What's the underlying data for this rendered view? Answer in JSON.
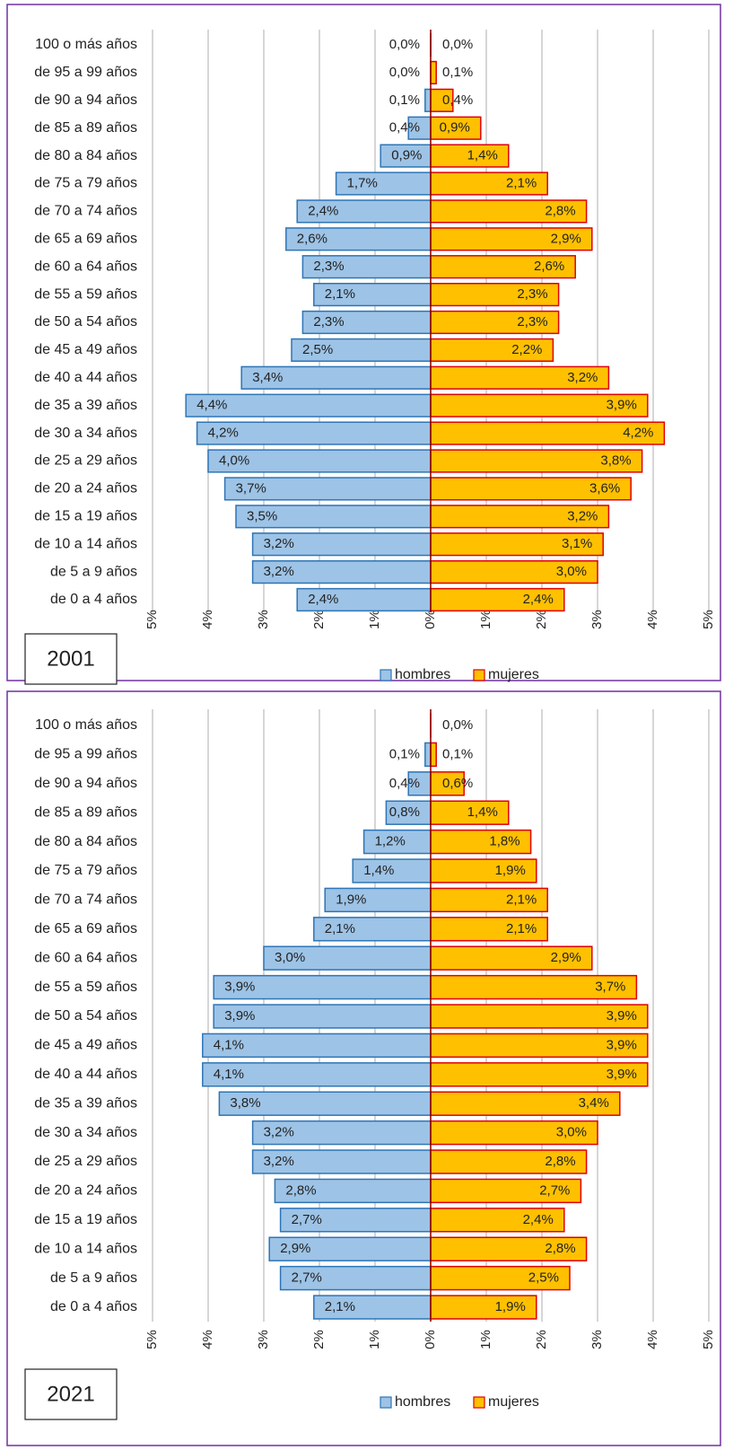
{
  "chart_data": [
    {
      "type": "bar",
      "orientation": "horizontal",
      "layout": "pyramid",
      "title": "2001",
      "categories": [
        "100 o más años",
        "de 95 a 99 años",
        "de 90 a 94 años",
        "de 85 a 89 años",
        "de 80 a 84 años",
        "de 75 a 79 años",
        "de 70 a 74 años",
        "de 65 a 69 años",
        "de 60 a 64 años",
        "de 55 a 59 años",
        "de 50 a 54 años",
        "de 45 a 49 años",
        "de 40 a 44 años",
        "de 35 a 39 años",
        "de 30 a 34 años",
        "de 25 a 29 años",
        "de 20 a 24 años",
        "de 15 a 19 años",
        "de 10 a 14 años",
        "de 5 a 9 años",
        "de 0 a 4 años"
      ],
      "series": [
        {
          "name": "hombres",
          "color": "#9dc3e6",
          "edge": "#2e75b6",
          "values": [
            0.0,
            0.0,
            0.1,
            0.4,
            0.9,
            1.7,
            2.4,
            2.6,
            2.3,
            2.1,
            2.3,
            2.5,
            3.4,
            4.4,
            4.2,
            4.0,
            3.7,
            3.5,
            3.2,
            3.2,
            2.4
          ],
          "value_labels": [
            "0,0%",
            "0,0%",
            "0,1%",
            "0,4%",
            "0,9%",
            "1,7%",
            "2,4%",
            "2,6%",
            "2,3%",
            "2,1%",
            "2,3%",
            "2,5%",
            "3,4%",
            "4,4%",
            "4,2%",
            "4,0%",
            "3,7%",
            "3,5%",
            "3,2%",
            "3,2%",
            "2,4%"
          ]
        },
        {
          "name": "mujeres",
          "color": "#ffc000",
          "edge": "#e00000",
          "values": [
            0.0,
            0.1,
            0.4,
            0.9,
            1.4,
            2.1,
            2.8,
            2.9,
            2.6,
            2.3,
            2.3,
            2.2,
            3.2,
            3.9,
            4.2,
            3.8,
            3.6,
            3.2,
            3.1,
            3.0,
            2.4
          ],
          "value_labels": [
            "0,0%",
            "0,1%",
            "0,4%",
            "0,9%",
            "1,4%",
            "2,1%",
            "2,8%",
            "2,9%",
            "2,6%",
            "2,3%",
            "2,3%",
            "2,2%",
            "3,2%",
            "3,9%",
            "4,2%",
            "3,8%",
            "3,6%",
            "3,2%",
            "3,1%",
            "3,0%",
            "2,4%"
          ]
        }
      ],
      "xlim": [
        -5,
        5
      ],
      "xticks": [
        {
          "value": -5,
          "label": "5%"
        },
        {
          "value": -4,
          "label": "4%"
        },
        {
          "value": -3,
          "label": "3%"
        },
        {
          "value": -2,
          "label": "2%"
        },
        {
          "value": -1,
          "label": "1%"
        },
        {
          "value": 0,
          "label": "0%"
        },
        {
          "value": 1,
          "label": "1%"
        },
        {
          "value": 2,
          "label": "2%"
        },
        {
          "value": 3,
          "label": "3%"
        },
        {
          "value": 4,
          "label": "4%"
        },
        {
          "value": 5,
          "label": "5%"
        }
      ],
      "grid": true,
      "legend": "bottom"
    },
    {
      "type": "bar",
      "orientation": "horizontal",
      "layout": "pyramid",
      "title": "2021",
      "categories": [
        "100 o más años",
        "de 95 a 99 años",
        "de 90 a 94 años",
        "de 85 a 89 años",
        "de 80 a 84 años",
        "de 75 a 79 años",
        "de 70 a 74 años",
        "de 65 a 69 años",
        "de 60 a 64 años",
        "de 55 a 59 años",
        "de 50 a 54 años",
        "de 45 a 49 años",
        "de 40 a 44 años",
        "de 35 a 39 años",
        "de 30 a 34 años",
        "de 25 a 29 años",
        "de 20 a 24 años",
        "de 15 a 19 años",
        "de 10 a 14 años",
        "de 5 a 9 años",
        "de 0 a 4 años"
      ],
      "series": [
        {
          "name": "hombres",
          "color": "#9dc3e6",
          "edge": "#2e75b6",
          "values": [
            null,
            0.1,
            0.4,
            0.8,
            1.2,
            1.4,
            1.9,
            2.1,
            3.0,
            3.9,
            3.9,
            4.1,
            4.1,
            3.8,
            3.2,
            3.2,
            2.8,
            2.7,
            2.9,
            2.7,
            2.1
          ],
          "value_labels": [
            null,
            "0,1%",
            "0,4%",
            "0,8%",
            "1,2%",
            "1,4%",
            "1,9%",
            "2,1%",
            "3,0%",
            "3,9%",
            "3,9%",
            "4,1%",
            "4,1%",
            "3,8%",
            "3,2%",
            "3,2%",
            "2,8%",
            "2,7%",
            "2,9%",
            "2,7%",
            "2,1%"
          ]
        },
        {
          "name": "mujeres",
          "color": "#ffc000",
          "edge": "#e00000",
          "values": [
            0.0,
            0.1,
            0.6,
            1.4,
            1.8,
            1.9,
            2.1,
            2.1,
            2.9,
            3.7,
            3.9,
            3.9,
            3.9,
            3.4,
            3.0,
            2.8,
            2.7,
            2.4,
            2.8,
            2.5,
            1.9
          ],
          "value_labels": [
            "0,0%",
            "0,1%",
            "0,6%",
            "1,4%",
            "1,8%",
            "1,9%",
            "2,1%",
            "2,1%",
            "2,9%",
            "3,7%",
            "3,9%",
            "3,9%",
            "3,9%",
            "3,4%",
            "3,0%",
            "2,8%",
            "2,7%",
            "2,4%",
            "2,8%",
            "2,5%",
            "1,9%"
          ]
        }
      ],
      "xlim": [
        -5,
        5
      ],
      "xticks": [
        {
          "value": -5,
          "label": "5%"
        },
        {
          "value": -4,
          "label": "4%"
        },
        {
          "value": -3,
          "label": "3%"
        },
        {
          "value": -2,
          "label": "2%"
        },
        {
          "value": -1,
          "label": "1%"
        },
        {
          "value": 0,
          "label": "0%"
        },
        {
          "value": 1,
          "label": "1%"
        },
        {
          "value": 2,
          "label": "2%"
        },
        {
          "value": 3,
          "label": "3%"
        },
        {
          "value": 4,
          "label": "4%"
        },
        {
          "value": 5,
          "label": "5%"
        }
      ],
      "grid": true,
      "legend": "bottom"
    }
  ]
}
